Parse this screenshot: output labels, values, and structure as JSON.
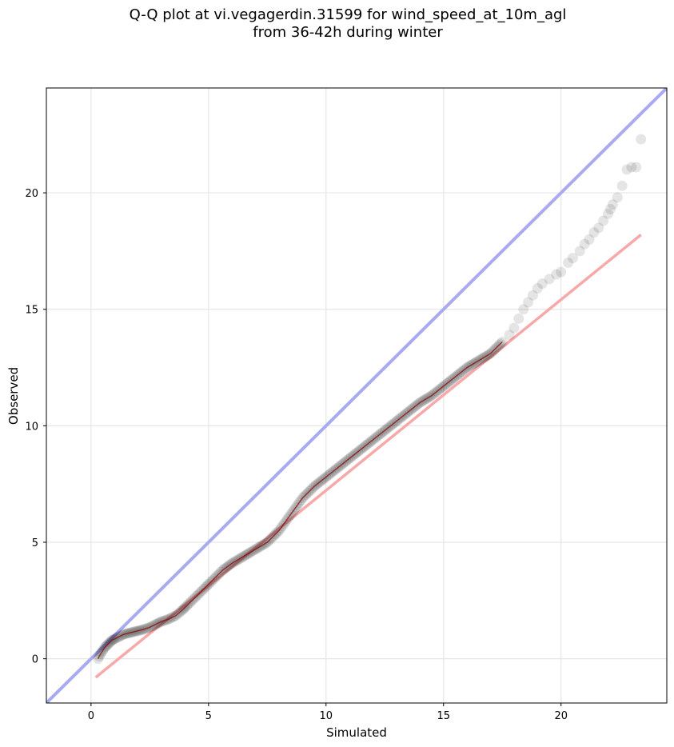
{
  "title_line1": "Q-Q plot at vi.vegagerdin.31599 for wind_speed_at_10m_agl",
  "title_line2": "from 36-42h during winter",
  "chart_data": {
    "type": "scatter",
    "xlabel": "Simulated",
    "ylabel": "Observed",
    "xlim": [
      -1.9,
      24.5
    ],
    "ylim": [
      -1.9,
      24.5
    ],
    "xticks": [
      0,
      5,
      10,
      15,
      20
    ],
    "yticks": [
      0,
      5,
      10,
      15,
      20
    ],
    "grid": true,
    "colors": {
      "identity_line": "#aaaaf0",
      "fit_line": "#f7a9a9",
      "points": "#000000",
      "local_trend": "#8b0000"
    },
    "identity_line": {
      "x": [
        -1.9,
        24.5
      ],
      "y": [
        -1.9,
        24.5
      ]
    },
    "fit_line": {
      "x": [
        0.2,
        23.4
      ],
      "y": [
        -0.8,
        18.2
      ]
    },
    "quantiles": {
      "x": [
        0.3,
        0.4,
        0.5,
        0.6,
        0.7,
        0.8,
        0.9,
        1.0,
        1.2,
        1.4,
        1.6,
        1.8,
        2.0,
        2.2,
        2.5,
        2.8,
        3.0,
        3.3,
        3.6,
        3.9,
        4.0,
        4.2,
        4.5,
        4.8,
        5.0,
        5.3,
        5.6,
        6.0,
        6.5,
        7.0,
        7.5,
        8.0,
        8.5,
        9.0,
        9.5,
        10.0,
        10.5,
        11.0,
        11.5,
        12.0,
        12.5,
        13.0,
        13.5,
        14.0,
        14.5,
        15.0,
        15.5,
        16.0,
        16.5,
        17.0,
        17.5,
        17.8,
        18.0,
        18.2,
        18.4,
        18.6,
        18.8,
        19.0,
        19.2,
        19.5,
        19.8,
        20.0,
        20.3,
        20.5,
        20.8,
        21.0,
        21.2,
        21.4,
        21.6,
        21.8,
        22.0,
        22.1,
        22.2,
        22.4,
        22.6,
        22.8,
        23.0,
        23.2,
        23.4
      ],
      "y": [
        0.0,
        0.2,
        0.35,
        0.5,
        0.6,
        0.7,
        0.8,
        0.85,
        0.95,
        1.05,
        1.1,
        1.15,
        1.2,
        1.25,
        1.35,
        1.5,
        1.6,
        1.7,
        1.85,
        2.1,
        2.2,
        2.4,
        2.7,
        3.0,
        3.2,
        3.5,
        3.8,
        4.1,
        4.4,
        4.7,
        5.0,
        5.5,
        6.2,
        6.9,
        7.4,
        7.8,
        8.2,
        8.6,
        9.0,
        9.4,
        9.8,
        10.2,
        10.6,
        11.0,
        11.3,
        11.7,
        12.1,
        12.5,
        12.8,
        13.1,
        13.6,
        13.9,
        14.2,
        14.6,
        15.0,
        15.3,
        15.6,
        15.9,
        16.1,
        16.3,
        16.5,
        16.6,
        17.0,
        17.2,
        17.5,
        17.8,
        18.0,
        18.3,
        18.5,
        18.8,
        19.1,
        19.3,
        19.5,
        19.8,
        20.3,
        21.0,
        21.1,
        21.1,
        22.3
      ]
    }
  }
}
